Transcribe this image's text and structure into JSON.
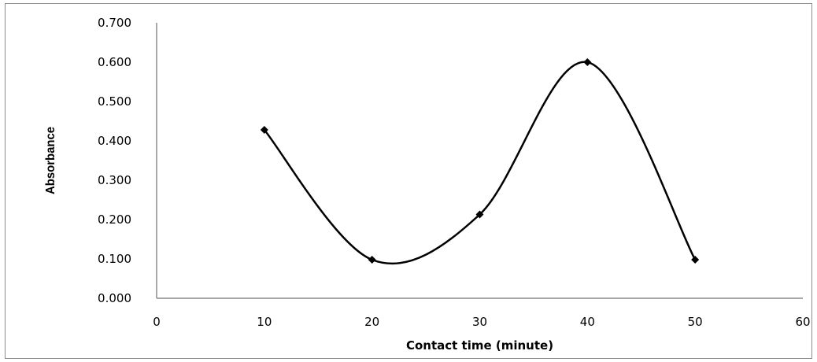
{
  "chart_data": {
    "type": "scatter",
    "smooth_line": true,
    "title": "",
    "xlabel": "Contact time (minute)",
    "ylabel": "Absorbance",
    "xlim": [
      0,
      60
    ],
    "ylim": [
      0,
      0.7
    ],
    "x_ticks": [
      "0",
      "10",
      "20",
      "30",
      "40",
      "50",
      "60"
    ],
    "y_ticks": [
      "0.000",
      "0.100",
      "0.200",
      "0.300",
      "0.400",
      "0.500",
      "0.600",
      "0.700"
    ],
    "grid": false,
    "legend": "none",
    "line_color": "#000000",
    "marker": "diamond",
    "series": [
      {
        "x": [
          10,
          20,
          30,
          40,
          50
        ],
        "y": [
          0.428,
          0.098,
          0.213,
          0.6,
          0.098
        ]
      }
    ]
  }
}
